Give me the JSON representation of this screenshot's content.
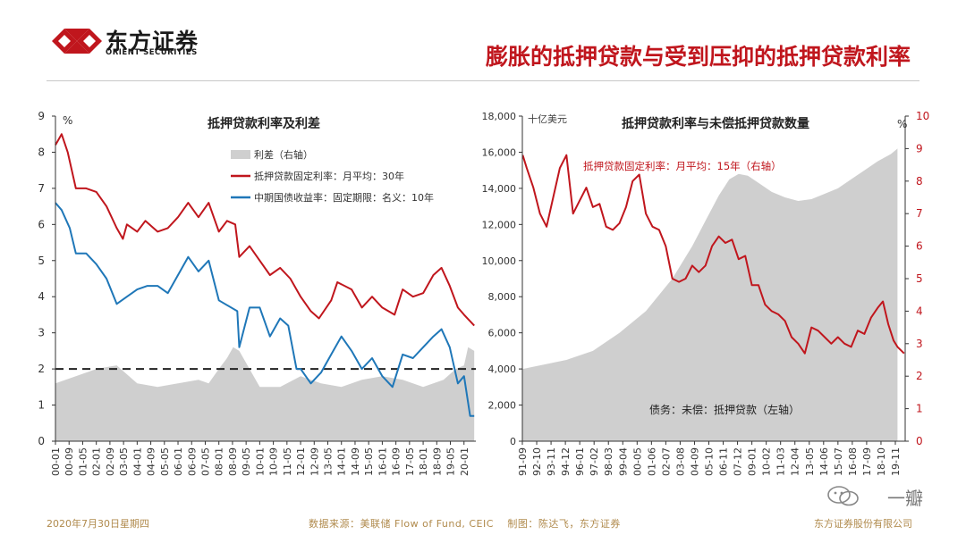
{
  "header": {
    "logo_cn": "东方证券",
    "logo_en": "ORIENT SECURITIES",
    "title": "膨胀的抵押贷款与受到压抑的抵押贷款利率"
  },
  "footer": {
    "date": "2020年7月30日星期四",
    "source": "数据来源：美联储 Flow of Fund, CEIC　 制图：陈达飞，东方证券",
    "company": "东方证券股份有限公司"
  },
  "watermark": "一瓣",
  "colors": {
    "red": "#c0161d",
    "blue": "#1f77b8",
    "gray": "#cfcfcf",
    "axis": "#333333"
  },
  "chart_data": [
    {
      "type": "line",
      "title": "抵押贷款利率及利差",
      "unit_label": "%",
      "ylim": [
        0,
        9
      ],
      "y_ticks": [
        0,
        1,
        2,
        3,
        4,
        5,
        6,
        7,
        8,
        9
      ],
      "x_tick_labels": [
        "00-01",
        "00-09",
        "01-05",
        "02-01",
        "02-09",
        "03-05",
        "04-01",
        "04-09",
        "05-05",
        "06-01",
        "06-09",
        "07-05",
        "08-01",
        "08-09",
        "09-05",
        "10-01",
        "10-09",
        "11-05",
        "12-01",
        "12-09",
        "13-05",
        "14-01",
        "14-09",
        "15-05",
        "16-01",
        "16-09",
        "17-05",
        "18-01",
        "18-09",
        "19-05",
        "20-01"
      ],
      "reference_line": 2,
      "legend": [
        {
          "name": "利差（右轴）",
          "color": "#cfcfcf",
          "kind": "area"
        },
        {
          "name": "抵押贷款固定利率：月平均：30年",
          "color": "#c0161d",
          "kind": "line"
        },
        {
          "name": "中期国债收益率：固定期限：名义：10年",
          "color": "#1f77b8",
          "kind": "line"
        }
      ],
      "series": [
        {
          "name": "抵押贷款固定利率：月平均：30年",
          "x": [
            2000.0,
            2000.3,
            2000.6,
            2001.0,
            2001.5,
            2002.0,
            2002.5,
            2003.0,
            2003.3,
            2003.5,
            2004.0,
            2004.4,
            2005.0,
            2005.5,
            2006.0,
            2006.5,
            2007.0,
            2007.5,
            2008.0,
            2008.4,
            2008.8,
            2009.0,
            2009.5,
            2010.0,
            2010.5,
            2011.0,
            2011.5,
            2012.0,
            2012.5,
            2012.9,
            2013.5,
            2013.8,
            2014.5,
            2015.0,
            2015.5,
            2016.0,
            2016.6,
            2017.0,
            2017.5,
            2018.0,
            2018.5,
            2018.9,
            2019.3,
            2019.7,
            2020.0,
            2020.5
          ],
          "values": [
            8.2,
            8.5,
            8.0,
            7.0,
            7.0,
            6.9,
            6.5,
            5.9,
            5.6,
            6.0,
            5.8,
            6.1,
            5.8,
            5.9,
            6.2,
            6.6,
            6.2,
            6.6,
            5.8,
            6.1,
            6.0,
            5.1,
            5.4,
            5.0,
            4.6,
            4.8,
            4.5,
            4.0,
            3.6,
            3.4,
            3.9,
            4.4,
            4.2,
            3.7,
            4.0,
            3.7,
            3.5,
            4.2,
            4.0,
            4.1,
            4.6,
            4.8,
            4.3,
            3.7,
            3.5,
            3.2
          ]
        },
        {
          "name": "中期国债收益率：固定期限：名义：10年",
          "x": [
            2000.0,
            2000.3,
            2000.7,
            2001.0,
            2001.5,
            2002.0,
            2002.5,
            2003.0,
            2003.5,
            2004.0,
            2004.5,
            2005.0,
            2005.5,
            2006.0,
            2006.5,
            2007.0,
            2007.5,
            2008.0,
            2008.9,
            2009.0,
            2009.5,
            2010.0,
            2010.5,
            2011.0,
            2011.4,
            2011.8,
            2012.0,
            2012.5,
            2013.0,
            2013.5,
            2014.0,
            2014.5,
            2015.0,
            2015.5,
            2016.0,
            2016.5,
            2017.0,
            2017.5,
            2018.0,
            2018.5,
            2018.9,
            2019.3,
            2019.7,
            2020.0,
            2020.3,
            2020.5
          ],
          "values": [
            6.6,
            6.4,
            5.9,
            5.2,
            5.2,
            4.9,
            4.5,
            3.8,
            4.0,
            4.2,
            4.3,
            4.3,
            4.1,
            4.6,
            5.1,
            4.7,
            5.0,
            3.9,
            3.6,
            2.6,
            3.7,
            3.7,
            2.9,
            3.4,
            3.2,
            2.0,
            2.0,
            1.6,
            1.9,
            2.4,
            2.9,
            2.5,
            2.0,
            2.3,
            1.8,
            1.5,
            2.4,
            2.3,
            2.6,
            2.9,
            3.1,
            2.6,
            1.6,
            1.8,
            0.7,
            0.7
          ]
        },
        {
          "name": "利差（右轴）",
          "x": [
            2000.0,
            2001.0,
            2002.0,
            2003.0,
            2004.0,
            2005.0,
            2006.0,
            2007.0,
            2007.5,
            2008.0,
            2008.4,
            2008.7,
            2009.0,
            2010.0,
            2011.0,
            2012.0,
            2013.0,
            2014.0,
            2015.0,
            2016.0,
            2017.0,
            2018.0,
            2019.0,
            2019.6,
            2020.0,
            2020.2,
            2020.5
          ],
          "values": [
            1.6,
            1.8,
            2.0,
            2.1,
            1.6,
            1.5,
            1.6,
            1.7,
            1.6,
            2.0,
            2.3,
            2.6,
            2.5,
            1.5,
            1.5,
            1.8,
            1.6,
            1.5,
            1.7,
            1.8,
            1.7,
            1.5,
            1.7,
            2.0,
            2.1,
            2.6,
            2.5
          ]
        }
      ]
    },
    {
      "type": "area",
      "title": "抵押贷款利率与未偿抵押贷款数量",
      "y_left_unit": "十亿美元",
      "y_right_unit": "%",
      "ylim_left": [
        0,
        18000
      ],
      "ylim_right": [
        0,
        10
      ],
      "y_left_ticks": [
        "0",
        "2,000",
        "4,000",
        "6,000",
        "8,000",
        "10,000",
        "12,000",
        "14,000",
        "16,000",
        "18,000"
      ],
      "y_right_ticks": [
        "0",
        "1",
        "2",
        "3",
        "4",
        "5",
        "6",
        "7",
        "8",
        "9",
        "10"
      ],
      "x_tick_labels": [
        "91-09",
        "92-10",
        "93-11",
        "94-12",
        "96-01",
        "97-02",
        "98-03",
        "99-04",
        "00-05",
        "01-06",
        "02-07",
        "03-08",
        "04-09",
        "05-10",
        "06-11",
        "07-12",
        "09-01",
        "10-02",
        "11-03",
        "12-04",
        "13-05",
        "14-06",
        "15-07",
        "16-08",
        "17-09",
        "18-10",
        "19-11"
      ],
      "series_labels": {
        "area": "债务：未偿：抵押贷款（左轴）",
        "line": "抵押贷款固定利率：月平均：15年（右轴）"
      },
      "series": [
        {
          "name": "债务：未偿：抵押贷款（左轴）",
          "axis": "left",
          "x": [
            1991.7,
            1993.0,
            1995.0,
            1997.0,
            1999.0,
            2001.0,
            2003.0,
            2004.5,
            2005.5,
            2006.5,
            2007.3,
            2008.0,
            2008.7,
            2009.5,
            2010.5,
            2011.5,
            2012.5,
            2013.5,
            2014.5,
            2015.5,
            2016.5,
            2017.5,
            2018.5,
            2019.5,
            2020.0
          ],
          "values": [
            4000,
            4200,
            4500,
            5000,
            6000,
            7200,
            9000,
            10800,
            12200,
            13600,
            14500,
            14800,
            14700,
            14300,
            13800,
            13500,
            13300,
            13400,
            13700,
            14000,
            14500,
            15000,
            15500,
            15900,
            16200
          ]
        },
        {
          "name": "抵押贷款固定利率：月平均：15年（右轴）",
          "axis": "right",
          "x": [
            1991.7,
            1992.0,
            1992.5,
            1993.0,
            1993.5,
            1994.0,
            1994.5,
            1995.0,
            1995.5,
            1996.0,
            1996.5,
            1997.0,
            1997.5,
            1998.0,
            1998.5,
            1999.0,
            1999.5,
            2000.0,
            2000.5,
            2001.0,
            2001.5,
            2002.0,
            2002.5,
            2003.0,
            2003.5,
            2004.0,
            2004.5,
            2005.0,
            2005.5,
            2006.0,
            2006.5,
            2007.0,
            2007.5,
            2008.0,
            2008.5,
            2009.0,
            2009.5,
            2010.0,
            2010.5,
            2011.0,
            2011.5,
            2012.0,
            2012.5,
            2013.0,
            2013.5,
            2014.0,
            2014.5,
            2015.0,
            2015.5,
            2016.0,
            2016.5,
            2017.0,
            2017.5,
            2018.0,
            2018.5,
            2018.9,
            2019.3,
            2019.7,
            2020.0,
            2020.5
          ],
          "values": [
            8.8,
            8.4,
            7.8,
            7.0,
            6.6,
            7.5,
            8.4,
            8.8,
            7.0,
            7.4,
            7.8,
            7.2,
            7.3,
            6.6,
            6.5,
            6.7,
            7.2,
            8.0,
            8.2,
            7.0,
            6.6,
            6.5,
            6.0,
            5.0,
            4.9,
            5.0,
            5.4,
            5.2,
            5.4,
            6.0,
            6.3,
            6.1,
            6.2,
            5.6,
            5.7,
            4.8,
            4.8,
            4.2,
            4.0,
            3.9,
            3.7,
            3.2,
            3.0,
            2.7,
            3.5,
            3.4,
            3.2,
            3.0,
            3.2,
            3.0,
            2.9,
            3.4,
            3.3,
            3.8,
            4.1,
            4.3,
            3.6,
            3.1,
            2.9,
            2.7
          ]
        }
      ]
    }
  ]
}
